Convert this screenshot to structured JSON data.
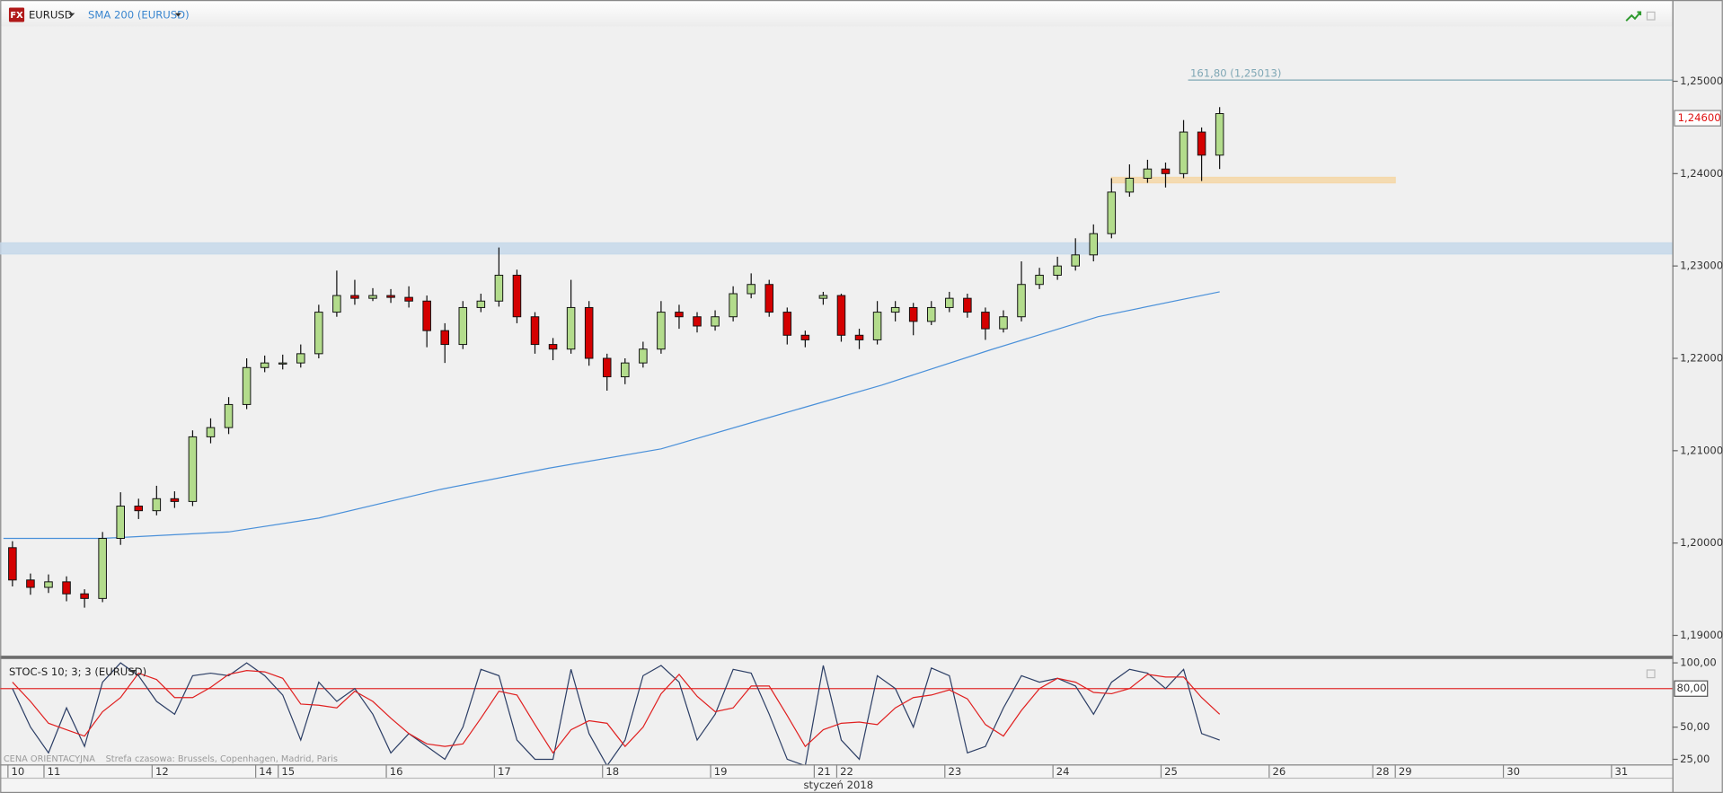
{
  "chart_data": [
    {
      "type": "candlestick",
      "title": "EURUSD",
      "badge": "FX",
      "xlim": [
        0,
        370.5
      ],
      "ylim": [
        1.1878,
        1.2588
      ],
      "xticks": [
        {
          "value": 1,
          "label": "10"
        },
        {
          "value": 9,
          "label": "11"
        },
        {
          "value": 33,
          "label": "12"
        },
        {
          "value": 56,
          "label": "14"
        },
        {
          "value": 61,
          "label": "15"
        },
        {
          "value": 85,
          "label": "16"
        },
        {
          "value": 109,
          "label": "17"
        },
        {
          "value": 133,
          "label": "18"
        },
        {
          "value": 157,
          "label": "19"
        },
        {
          "value": 180,
          "label": "21"
        },
        {
          "value": 185,
          "label": "22"
        },
        {
          "value": 209,
          "label": "23"
        },
        {
          "value": 233,
          "label": "24"
        },
        {
          "value": 257,
          "label": "25"
        },
        {
          "value": 281,
          "label": "26"
        },
        {
          "value": 304,
          "label": "28"
        },
        {
          "value": 309,
          "label": "29"
        },
        {
          "value": 333,
          "label": "30"
        },
        {
          "value": 357,
          "label": "31"
        }
      ],
      "x_axis_label": "styczeń 2018",
      "yticks": [
        {
          "value": 1.25,
          "label": "1,25000"
        },
        {
          "value": 1.24,
          "label": "1,24000"
        },
        {
          "value": 1.23,
          "label": "1,23000"
        },
        {
          "value": 1.22,
          "label": "1,22000"
        },
        {
          "value": 1.21,
          "label": "1,21000"
        },
        {
          "value": 1.2,
          "label": "1,20000"
        },
        {
          "value": 1.19,
          "label": "1,19000"
        }
      ],
      "x": [
        2,
        6,
        10,
        14,
        18,
        22,
        26,
        30,
        34,
        38,
        42,
        46,
        50,
        54,
        58,
        62,
        66,
        70,
        74,
        78,
        82,
        86,
        90,
        94,
        98,
        102,
        106,
        110,
        114,
        118,
        122,
        126,
        130,
        134,
        138,
        142,
        146,
        150,
        154,
        158,
        162,
        166,
        170,
        174,
        178,
        182,
        186,
        190,
        194,
        198,
        202,
        206,
        210,
        214,
        218,
        222,
        226,
        230,
        234,
        238,
        242,
        246,
        250,
        254,
        258,
        262,
        266,
        270
      ],
      "open": [
        1.1995,
        1.196,
        1.1952,
        1.1958,
        1.1945,
        1.194,
        1.2005,
        1.204,
        1.2035,
        1.2048,
        1.2045,
        1.2115,
        1.2125,
        1.215,
        1.219,
        1.2195,
        1.2195,
        1.2205,
        1.225,
        1.2268,
        1.2265,
        1.2268,
        1.2266,
        1.2262,
        1.223,
        1.2215,
        1.2255,
        1.2262,
        1.229,
        1.2245,
        1.2215,
        1.221,
        1.2255,
        1.22,
        1.218,
        1.2195,
        1.221,
        1.225,
        1.2245,
        1.2235,
        1.2245,
        1.227,
        1.228,
        1.225,
        1.2225,
        1.2265,
        1.2268,
        1.2225,
        1.222,
        1.225,
        1.2255,
        1.224,
        1.2255,
        1.2265,
        1.225,
        1.2232,
        1.2245,
        1.228,
        1.229,
        1.23,
        1.2312,
        1.2335,
        1.238,
        1.2395,
        1.2405,
        1.24,
        1.2445,
        1.242
      ],
      "high": [
        1.2002,
        1.1967,
        1.1966,
        1.1964,
        1.195,
        1.2012,
        1.2055,
        1.2048,
        1.2062,
        1.2056,
        1.2122,
        1.2135,
        1.2158,
        1.22,
        1.2203,
        1.2204,
        1.2215,
        1.2258,
        1.2295,
        1.2285,
        1.2276,
        1.2275,
        1.2278,
        1.2268,
        1.2238,
        1.2262,
        1.227,
        1.232,
        1.2296,
        1.225,
        1.2222,
        1.2285,
        1.2262,
        1.2205,
        1.22,
        1.2218,
        1.2262,
        1.2258,
        1.225,
        1.2252,
        1.2278,
        1.2292,
        1.2285,
        1.2255,
        1.223,
        1.2272,
        1.227,
        1.2232,
        1.2262,
        1.2262,
        1.226,
        1.2262,
        1.2272,
        1.227,
        1.2255,
        1.2252,
        1.2305,
        1.2298,
        1.231,
        1.233,
        1.2345,
        1.2395,
        1.241,
        1.2415,
        1.2412,
        1.2458,
        1.245,
        1.2472
      ],
      "low": [
        1.1953,
        1.1944,
        1.1946,
        1.1937,
        1.193,
        1.1936,
        1.1998,
        1.2026,
        1.203,
        1.2038,
        1.204,
        1.2108,
        1.2118,
        1.2145,
        1.2185,
        1.2188,
        1.219,
        1.22,
        1.2245,
        1.2258,
        1.2262,
        1.226,
        1.2255,
        1.2212,
        1.2195,
        1.221,
        1.225,
        1.2256,
        1.2238,
        1.2205,
        1.2198,
        1.2205,
        1.2192,
        1.2165,
        1.2172,
        1.219,
        1.2205,
        1.2232,
        1.2228,
        1.223,
        1.224,
        1.2265,
        1.2245,
        1.2215,
        1.2212,
        1.2258,
        1.2218,
        1.221,
        1.2215,
        1.224,
        1.2225,
        1.2236,
        1.225,
        1.2244,
        1.222,
        1.2228,
        1.224,
        1.2275,
        1.2285,
        1.2295,
        1.2305,
        1.233,
        1.2375,
        1.239,
        1.2385,
        1.2395,
        1.2392,
        1.2405
      ],
      "close": [
        1.196,
        1.1952,
        1.1958,
        1.1945,
        1.194,
        1.2005,
        1.204,
        1.2035,
        1.2048,
        1.2045,
        1.2115,
        1.2125,
        1.215,
        1.219,
        1.2195,
        1.2195,
        1.2205,
        1.225,
        1.2268,
        1.2265,
        1.2268,
        1.2266,
        1.2262,
        1.223,
        1.2215,
        1.2255,
        1.2262,
        1.229,
        1.2245,
        1.2215,
        1.221,
        1.2255,
        1.22,
        1.218,
        1.2195,
        1.221,
        1.225,
        1.2245,
        1.2235,
        1.2245,
        1.227,
        1.228,
        1.225,
        1.2225,
        1.222,
        1.2268,
        1.2225,
        1.222,
        1.225,
        1.2255,
        1.224,
        1.2255,
        1.2265,
        1.225,
        1.2232,
        1.2245,
        1.228,
        1.229,
        1.23,
        1.2312,
        1.2335,
        1.238,
        1.2395,
        1.2405,
        1.24,
        1.2445,
        1.242,
        1.2465
      ],
      "up_color": "#b3dc8c",
      "down_color": "#d40000",
      "series": [
        {
          "name": "SMA 200 (EURUSD)",
          "color": "#4a90d9",
          "x": [
            0,
            22,
            50,
            70,
            97,
            121,
            146,
            170,
            195,
            219,
            243,
            270
          ],
          "values": [
            1.2005,
            1.2005,
            1.2012,
            1.2027,
            1.2058,
            1.2081,
            1.2102,
            1.2136,
            1.2171,
            1.2209,
            1.2245,
            1.2272
          ]
        }
      ],
      "levels": [
        {
          "value": 1.25013,
          "label": "161,80 (1,25013)",
          "color": "#7fa7b5",
          "x_start": 263
        }
      ],
      "last_price": {
        "value": 1.246,
        "label": "1,24600"
      },
      "zones": [
        {
          "y": [
            1.2313,
            1.2325
          ],
          "color": "#c5d8ea"
        },
        {
          "y": [
            1.239,
            1.2396
          ],
          "x": [
            246,
            309
          ],
          "color": "#f5d7a6"
        }
      ]
    },
    {
      "type": "line",
      "title": "STOC-S 10; 3; 3 (EURUSD)",
      "ylim": [
        21,
        103
      ],
      "yticks": [
        {
          "value": 100,
          "label": "100,00"
        },
        {
          "value": 50,
          "label": "50,00"
        },
        {
          "value": 25,
          "label": "25,00"
        }
      ],
      "reference_line": {
        "value": 80,
        "label": "80,00",
        "color": "#e03030"
      },
      "annotations": [
        "CENA ORIENTACYJNA",
        "Strefa czasowa: Brussels, Copenhagen, Madrid, Paris"
      ],
      "x": [
        2,
        6,
        10,
        14,
        18,
        22,
        26,
        30,
        34,
        38,
        42,
        46,
        50,
        54,
        58,
        62,
        66,
        70,
        74,
        78,
        82,
        86,
        90,
        94,
        98,
        102,
        106,
        110,
        114,
        118,
        122,
        126,
        130,
        134,
        138,
        142,
        146,
        150,
        154,
        158,
        162,
        166,
        170,
        174,
        178,
        182,
        186,
        190,
        194,
        198,
        202,
        206,
        210,
        214,
        218,
        222,
        226,
        230,
        234,
        238,
        242,
        246,
        250,
        254,
        258,
        262,
        266,
        270
      ],
      "series": [
        {
          "color": "#2d3f66",
          "values": [
            80,
            50,
            30,
            65,
            35,
            85,
            100,
            90,
            70,
            60,
            90,
            92,
            90,
            100,
            90,
            75,
            40,
            85,
            70,
            80,
            60,
            30,
            45,
            35,
            25,
            50,
            95,
            90,
            40,
            25,
            25,
            95,
            45,
            20,
            40,
            90,
            98,
            85,
            40,
            60,
            95,
            92,
            60,
            25,
            20,
            98,
            40,
            25,
            90,
            80,
            50,
            96,
            90,
            30,
            35,
            65,
            90,
            85,
            88,
            82,
            60,
            85,
            95,
            92,
            80,
            95,
            45,
            40
          ]
        },
        {
          "color": "#e02020",
          "values": [
            85,
            70,
            53,
            48,
            43,
            62,
            73,
            92,
            87,
            73,
            73,
            81,
            91,
            94,
            93,
            88,
            68,
            67,
            65,
            78,
            70,
            57,
            45,
            37,
            35,
            37,
            57,
            78,
            75,
            52,
            30,
            48,
            55,
            53,
            35,
            50,
            76,
            91,
            74,
            62,
            65,
            82,
            82,
            59,
            35,
            48,
            53,
            54,
            52,
            65,
            73,
            75,
            79,
            72,
            52,
            43,
            63,
            80,
            88,
            85,
            77,
            76,
            80,
            91,
            89,
            89,
            73,
            60
          ]
        }
      ]
    }
  ]
}
